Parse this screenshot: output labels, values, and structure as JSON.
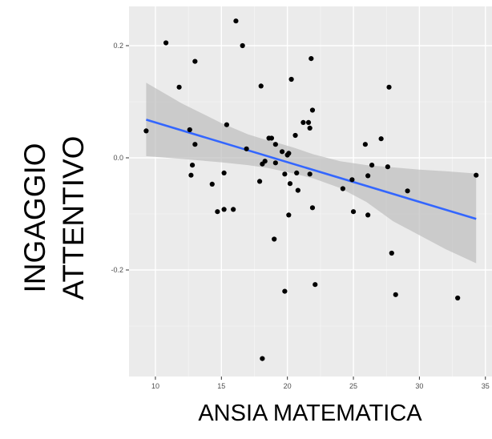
{
  "chart_data": {
    "type": "scatter",
    "xlabel": "ANSIA MATEMATICA",
    "ylabel": [
      "INGAGGIO",
      "ATTENTIVO"
    ],
    "xlim": [
      8,
      35.5
    ],
    "ylim": [
      -0.39,
      0.27
    ],
    "x_ticks": [
      10,
      15,
      20,
      25,
      30,
      35
    ],
    "x_tick_labels": [
      "10",
      "15",
      "20",
      "25",
      "30",
      "35"
    ],
    "y_ticks": [
      -0.2,
      0.0,
      0.2
    ],
    "y_tick_labels": [
      "-0.2",
      "0.0",
      "0.2"
    ],
    "grid": true,
    "colors": {
      "panel": "#ebebeb",
      "grid_major": "#ffffff",
      "grid_minor": "#f5f5f5",
      "points": "#000000",
      "fit": "#3366ff",
      "band": "#bdbdbd"
    },
    "points": [
      {
        "x": 9.3,
        "y": 0.048
      },
      {
        "x": 10.8,
        "y": 0.205
      },
      {
        "x": 11.8,
        "y": 0.126
      },
      {
        "x": 12.6,
        "y": 0.05
      },
      {
        "x": 12.7,
        "y": -0.031
      },
      {
        "x": 12.8,
        "y": -0.013
      },
      {
        "x": 13.0,
        "y": 0.172
      },
      {
        "x": 13.0,
        "y": 0.024
      },
      {
        "x": 14.3,
        "y": -0.047
      },
      {
        "x": 14.7,
        "y": -0.096
      },
      {
        "x": 15.2,
        "y": -0.027
      },
      {
        "x": 15.2,
        "y": -0.092
      },
      {
        "x": 15.4,
        "y": 0.059
      },
      {
        "x": 15.9,
        "y": -0.092
      },
      {
        "x": 16.1,
        "y": 0.244
      },
      {
        "x": 16.6,
        "y": 0.2
      },
      {
        "x": 16.9,
        "y": 0.016
      },
      {
        "x": 17.9,
        "y": -0.042
      },
      {
        "x": 18.0,
        "y": 0.128
      },
      {
        "x": 18.1,
        "y": -0.011
      },
      {
        "x": 18.1,
        "y": -0.358
      },
      {
        "x": 18.3,
        "y": -0.006
      },
      {
        "x": 18.6,
        "y": 0.035
      },
      {
        "x": 18.8,
        "y": 0.035
      },
      {
        "x": 19.0,
        "y": -0.145
      },
      {
        "x": 19.1,
        "y": -0.009
      },
      {
        "x": 19.1,
        "y": 0.024
      },
      {
        "x": 19.6,
        "y": 0.011
      },
      {
        "x": 19.8,
        "y": -0.029
      },
      {
        "x": 19.8,
        "y": -0.238
      },
      {
        "x": 20.0,
        "y": 0.005
      },
      {
        "x": 20.1,
        "y": 0.008
      },
      {
        "x": 20.1,
        "y": -0.102
      },
      {
        "x": 20.2,
        "y": -0.046
      },
      {
        "x": 20.3,
        "y": 0.14
      },
      {
        "x": 20.6,
        "y": 0.04
      },
      {
        "x": 20.7,
        "y": -0.027
      },
      {
        "x": 20.8,
        "y": -0.058
      },
      {
        "x": 21.2,
        "y": 0.063
      },
      {
        "x": 21.6,
        "y": 0.063
      },
      {
        "x": 21.7,
        "y": 0.053
      },
      {
        "x": 21.7,
        "y": -0.029
      },
      {
        "x": 21.8,
        "y": 0.177
      },
      {
        "x": 21.9,
        "y": 0.085
      },
      {
        "x": 21.9,
        "y": -0.089
      },
      {
        "x": 22.1,
        "y": -0.226
      },
      {
        "x": 24.2,
        "y": -0.055
      },
      {
        "x": 24.9,
        "y": -0.039
      },
      {
        "x": 25.0,
        "y": -0.096
      },
      {
        "x": 25.9,
        "y": 0.024
      },
      {
        "x": 26.1,
        "y": -0.032
      },
      {
        "x": 26.1,
        "y": -0.102
      },
      {
        "x": 26.4,
        "y": -0.013
      },
      {
        "x": 27.1,
        "y": 0.034
      },
      {
        "x": 27.6,
        "y": -0.016
      },
      {
        "x": 27.7,
        "y": 0.126
      },
      {
        "x": 27.9,
        "y": -0.17
      },
      {
        "x": 28.2,
        "y": -0.244
      },
      {
        "x": 29.1,
        "y": -0.059
      },
      {
        "x": 32.9,
        "y": -0.25
      },
      {
        "x": 34.3,
        "y": -0.031
      }
    ],
    "fit": {
      "x": [
        9.3,
        34.3
      ],
      "y": [
        0.068,
        -0.109
      ]
    },
    "band": {
      "x": [
        9.3,
        12,
        15,
        17,
        18.5,
        19.5,
        20.5,
        22,
        24,
        26,
        28,
        30,
        32,
        34.3
      ],
      "upper": [
        0.134,
        0.097,
        0.062,
        0.042,
        0.031,
        0.025,
        0.018,
        0.006,
        -0.006,
        -0.013,
        -0.017,
        -0.021,
        -0.024,
        -0.028
      ],
      "lower": [
        0.003,
        -0.002,
        -0.008,
        -0.013,
        -0.018,
        -0.023,
        -0.028,
        -0.037,
        -0.054,
        -0.079,
        -0.113,
        -0.138,
        -0.163,
        -0.188
      ]
    }
  }
}
